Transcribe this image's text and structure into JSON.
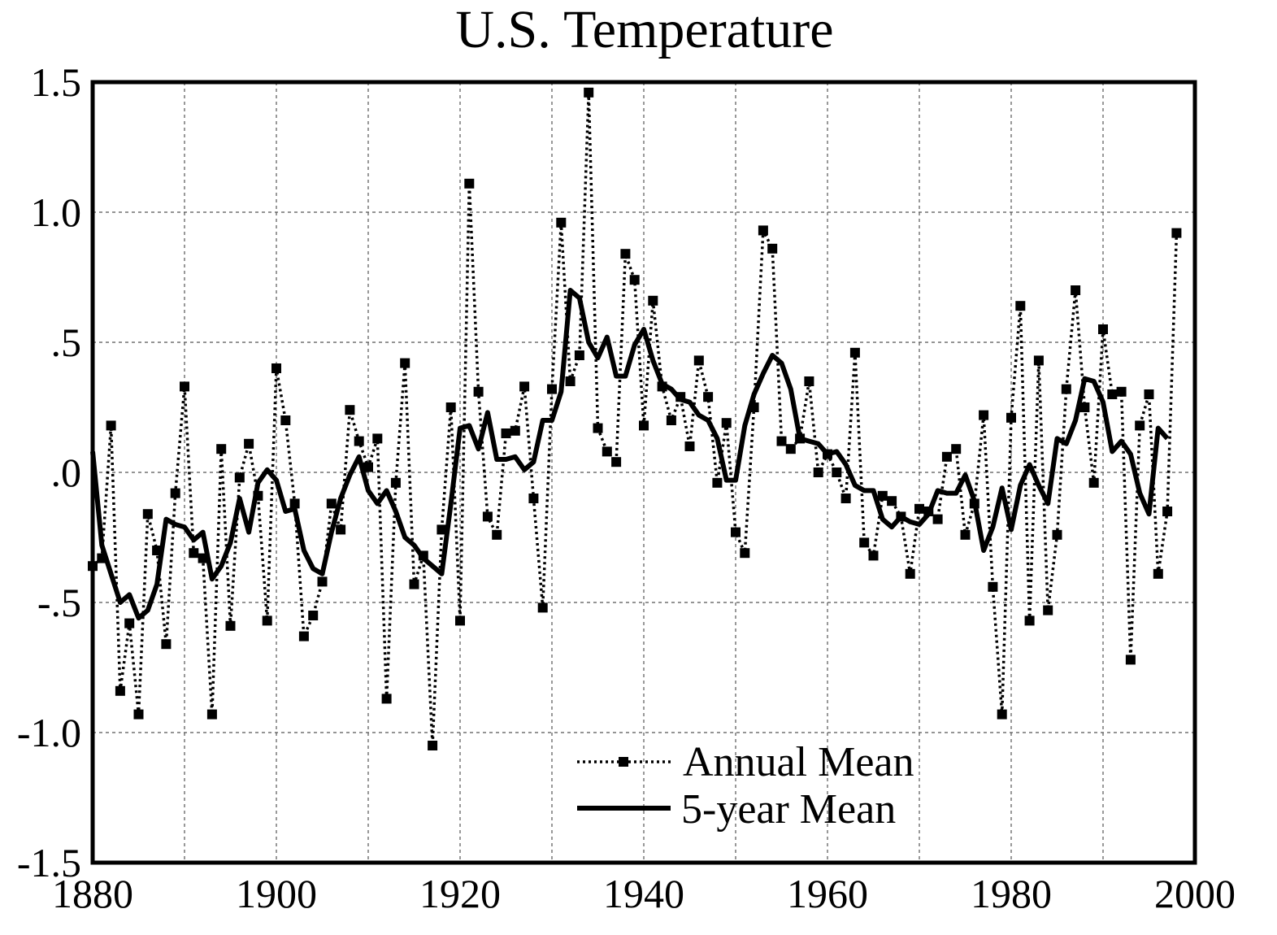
{
  "chart_data": {
    "type": "line",
    "title": "U.S. Temperature",
    "xlabel": "",
    "ylabel": "",
    "xlim": [
      1880,
      2000
    ],
    "ylim": [
      -1.5,
      1.5
    ],
    "x_ticks": [
      1880,
      1900,
      1920,
      1940,
      1960,
      1980,
      2000
    ],
    "x_tick_labels": [
      "1880",
      "1900",
      "1920",
      "1940",
      "1960",
      "1980",
      "2000"
    ],
    "y_ticks": [
      -1.5,
      -1.0,
      -0.5,
      0.0,
      0.5,
      1.0,
      1.5
    ],
    "y_tick_labels": [
      "-1.5",
      "-1.0",
      "-.5",
      ".0",
      ".5",
      "1.0",
      "1.5"
    ],
    "grid": true,
    "legend": {
      "position": "bottom-right"
    },
    "series": [
      {
        "name": "Annual Mean",
        "style": "dotted-square-markers",
        "x": [
          1880,
          1881,
          1882,
          1883,
          1884,
          1885,
          1886,
          1887,
          1888,
          1889,
          1890,
          1891,
          1892,
          1893,
          1894,
          1895,
          1896,
          1897,
          1898,
          1899,
          1900,
          1901,
          1902,
          1903,
          1904,
          1905,
          1906,
          1907,
          1908,
          1909,
          1910,
          1911,
          1912,
          1913,
          1914,
          1915,
          1916,
          1917,
          1918,
          1919,
          1920,
          1921,
          1922,
          1923,
          1924,
          1925,
          1926,
          1927,
          1928,
          1929,
          1930,
          1931,
          1932,
          1933,
          1934,
          1935,
          1936,
          1937,
          1938,
          1939,
          1940,
          1941,
          1942,
          1943,
          1944,
          1945,
          1946,
          1947,
          1948,
          1949,
          1950,
          1951,
          1952,
          1953,
          1954,
          1955,
          1956,
          1957,
          1958,
          1959,
          1960,
          1961,
          1962,
          1963,
          1964,
          1965,
          1966,
          1967,
          1968,
          1969,
          1970,
          1971,
          1972,
          1973,
          1974,
          1975,
          1976,
          1977,
          1978,
          1979,
          1980,
          1981,
          1982,
          1983,
          1984,
          1985,
          1986,
          1987,
          1988,
          1989,
          1990,
          1991,
          1992,
          1993,
          1994,
          1995,
          1996,
          1997,
          1998
        ],
        "values": [
          -0.36,
          -0.33,
          0.18,
          -0.84,
          -0.58,
          -0.93,
          -0.16,
          -0.3,
          -0.66,
          -0.08,
          0.33,
          -0.31,
          -0.33,
          -0.93,
          0.09,
          -0.59,
          -0.02,
          0.11,
          -0.09,
          -0.57,
          0.4,
          0.2,
          -0.12,
          -0.63,
          -0.55,
          -0.42,
          -0.12,
          -0.22,
          0.24,
          0.12,
          0.02,
          0.13,
          -0.87,
          -0.04,
          0.42,
          -0.43,
          -0.32,
          -1.05,
          -0.22,
          0.25,
          -0.57,
          1.11,
          0.31,
          -0.17,
          -0.24,
          0.15,
          0.16,
          0.33,
          -0.1,
          -0.52,
          0.32,
          0.96,
          0.35,
          0.45,
          1.46,
          0.17,
          0.08,
          0.04,
          0.84,
          0.74,
          0.18,
          0.66,
          0.33,
          0.2,
          0.29,
          0.1,
          0.43,
          0.29,
          -0.04,
          0.19,
          -0.23,
          -0.31,
          0.25,
          0.93,
          0.86,
          0.12,
          0.09,
          0.13,
          0.35,
          0.0,
          0.07,
          0.0,
          -0.1,
          0.46,
          -0.27,
          -0.32,
          -0.09,
          -0.11,
          -0.17,
          -0.39,
          -0.14,
          -0.15,
          -0.18,
          0.06,
          0.09,
          -0.24,
          -0.12,
          0.22,
          -0.44,
          -0.93,
          0.21,
          0.64,
          -0.57,
          0.43,
          -0.53,
          -0.24,
          0.32,
          0.7,
          0.25,
          -0.04,
          0.55,
          0.3,
          0.31,
          -0.72,
          0.18,
          0.3,
          -0.39,
          -0.15,
          0.92
        ]
      },
      {
        "name": "5-year Mean",
        "style": "solid-thick",
        "x": [
          1880,
          1881,
          1882,
          1883,
          1884,
          1885,
          1886,
          1887,
          1888,
          1889,
          1890,
          1891,
          1892,
          1893,
          1894,
          1895,
          1896,
          1897,
          1898,
          1899,
          1900,
          1901,
          1902,
          1903,
          1904,
          1905,
          1906,
          1907,
          1908,
          1909,
          1910,
          1911,
          1912,
          1913,
          1914,
          1915,
          1916,
          1917,
          1918,
          1919,
          1920,
          1921,
          1922,
          1923,
          1924,
          1925,
          1926,
          1927,
          1928,
          1929,
          1930,
          1931,
          1932,
          1933,
          1934,
          1935,
          1936,
          1937,
          1938,
          1939,
          1940,
          1941,
          1942,
          1943,
          1944,
          1945,
          1946,
          1947,
          1948,
          1949,
          1950,
          1951,
          1952,
          1953,
          1954,
          1955,
          1956,
          1957,
          1958,
          1959,
          1960,
          1961,
          1962,
          1963,
          1964,
          1965,
          1966,
          1967,
          1968,
          1969,
          1970,
          1971,
          1972,
          1973,
          1974,
          1975,
          1976,
          1977,
          1978,
          1979,
          1980,
          1981,
          1982,
          1983,
          1984,
          1985,
          1986,
          1987,
          1988,
          1989,
          1990,
          1991,
          1992,
          1993,
          1994,
          1995,
          1996,
          1997
        ],
        "values": [
          0.08,
          -0.28,
          -0.39,
          -0.5,
          -0.47,
          -0.56,
          -0.53,
          -0.43,
          -0.18,
          -0.2,
          -0.21,
          -0.26,
          -0.23,
          -0.41,
          -0.36,
          -0.27,
          -0.1,
          -0.23,
          -0.04,
          0.01,
          -0.03,
          -0.15,
          -0.14,
          -0.3,
          -0.37,
          -0.39,
          -0.23,
          -0.1,
          -0.01,
          0.06,
          -0.07,
          -0.12,
          -0.07,
          -0.15,
          -0.25,
          -0.28,
          -0.33,
          -0.36,
          -0.39,
          -0.12,
          0.17,
          0.18,
          0.09,
          0.23,
          0.05,
          0.05,
          0.06,
          0.01,
          0.04,
          0.2,
          0.2,
          0.31,
          0.7,
          0.67,
          0.5,
          0.44,
          0.52,
          0.37,
          0.37,
          0.49,
          0.55,
          0.43,
          0.34,
          0.32,
          0.28,
          0.27,
          0.22,
          0.2,
          0.13,
          -0.03,
          -0.03,
          0.18,
          0.3,
          0.38,
          0.45,
          0.42,
          0.32,
          0.13,
          0.12,
          0.11,
          0.07,
          0.08,
          0.03,
          -0.05,
          -0.07,
          -0.07,
          -0.18,
          -0.21,
          -0.17,
          -0.19,
          -0.2,
          -0.16,
          -0.07,
          -0.08,
          -0.08,
          -0.01,
          -0.11,
          -0.3,
          -0.21,
          -0.06,
          -0.22,
          -0.05,
          0.03,
          -0.05,
          -0.12,
          0.13,
          0.11,
          0.2,
          0.36,
          0.35,
          0.27,
          0.08,
          0.12,
          0.07,
          -0.08,
          -0.16,
          0.17,
          0.13
        ]
      }
    ]
  }
}
